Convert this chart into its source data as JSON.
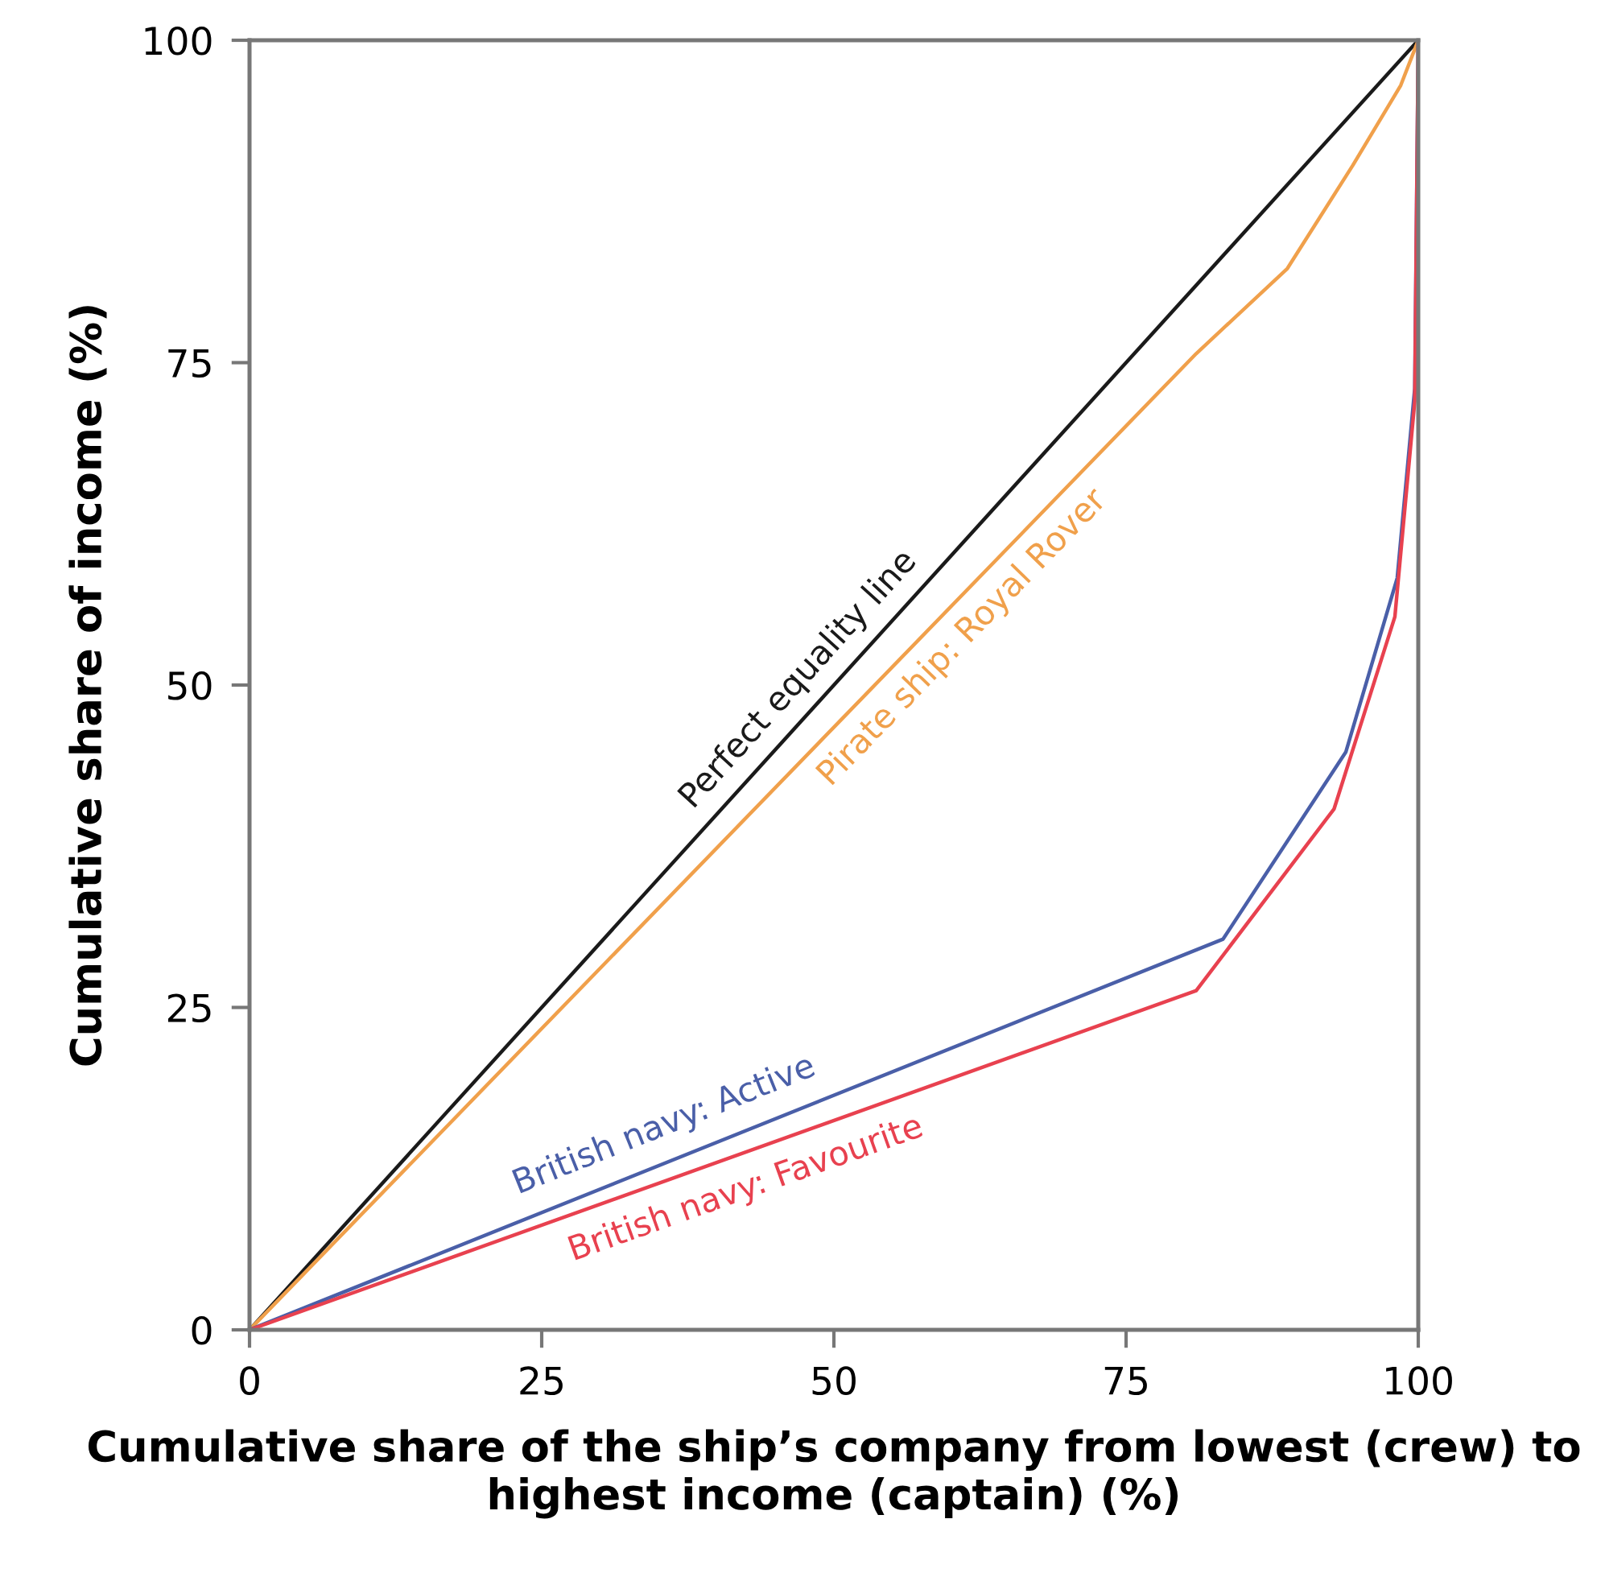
{
  "chart_data": {
    "type": "line",
    "xlabel": "Cumulative share of the ship’s company from lowest (crew) to highest income (captain) (%)",
    "ylabel": "Cumulative share of income (%)",
    "xlim": [
      0,
      100
    ],
    "ylim": [
      0,
      100
    ],
    "xticks": [
      0,
      25,
      50,
      75,
      100
    ],
    "yticks": [
      0,
      25,
      50,
      75,
      100
    ],
    "grid": false,
    "legend": false,
    "marker": "none",
    "line_style": "solid",
    "series": [
      {
        "name": "Perfect equality line",
        "color": "#1a1a1a",
        "x": [
          0,
          100
        ],
        "values": [
          0,
          100
        ]
      },
      {
        "name": "Pirate ship: Royal Rover",
        "color": "#f0a04b",
        "x": [
          0,
          81.0,
          88.8,
          94.4,
          98.5,
          100
        ],
        "values": [
          0,
          75.7,
          82.3,
          90.3,
          96.5,
          100
        ]
      },
      {
        "name": "British navy: Active",
        "color": "#4a5fa8",
        "x": [
          0,
          83.3,
          93.8,
          98.2,
          99.7,
          100
        ],
        "values": [
          0,
          30.3,
          44.8,
          58.3,
          73,
          100
        ]
      },
      {
        "name": "British navy: Favourite",
        "color": "#e8414f",
        "x": [
          0,
          81.0,
          92.8,
          98.0,
          99.7,
          100
        ],
        "values": [
          0,
          26.3,
          40.4,
          55.3,
          72,
          100
        ]
      }
    ]
  }
}
